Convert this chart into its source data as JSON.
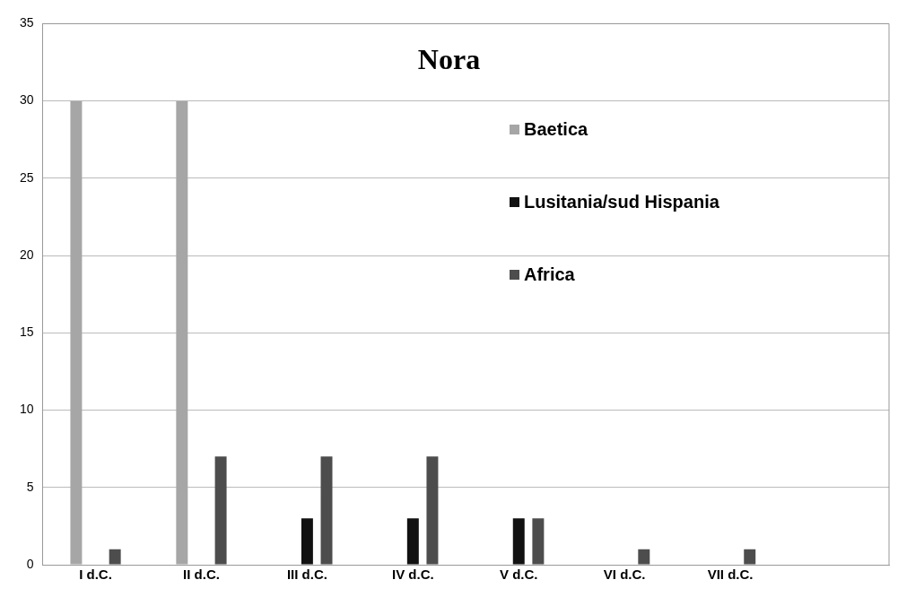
{
  "chart_data": {
    "type": "bar",
    "title": "Nora",
    "categories": [
      "I d.C.",
      "II d.C.",
      "III d.C.",
      "IV d.C.",
      "V d.C.",
      "VI d.C.",
      "VII d.C.",
      null
    ],
    "series": [
      {
        "name": "Baetica",
        "color": "#a6a6a6",
        "values": [
          30,
          30,
          0,
          0,
          0,
          0,
          0,
          0
        ]
      },
      {
        "name": "Lusitania/sud Hispania",
        "color": "#111111",
        "values": [
          0,
          0,
          3,
          3,
          3,
          0,
          0,
          0
        ]
      },
      {
        "name": "Africa",
        "color": "#4d4d4d",
        "values": [
          1,
          7,
          7,
          7,
          3,
          1,
          1,
          0
        ]
      }
    ],
    "ylim": [
      0,
      35
    ],
    "yticks": [
      0,
      5,
      10,
      15,
      20,
      25,
      30,
      35
    ],
    "grid": "y",
    "legend": "top right"
  }
}
